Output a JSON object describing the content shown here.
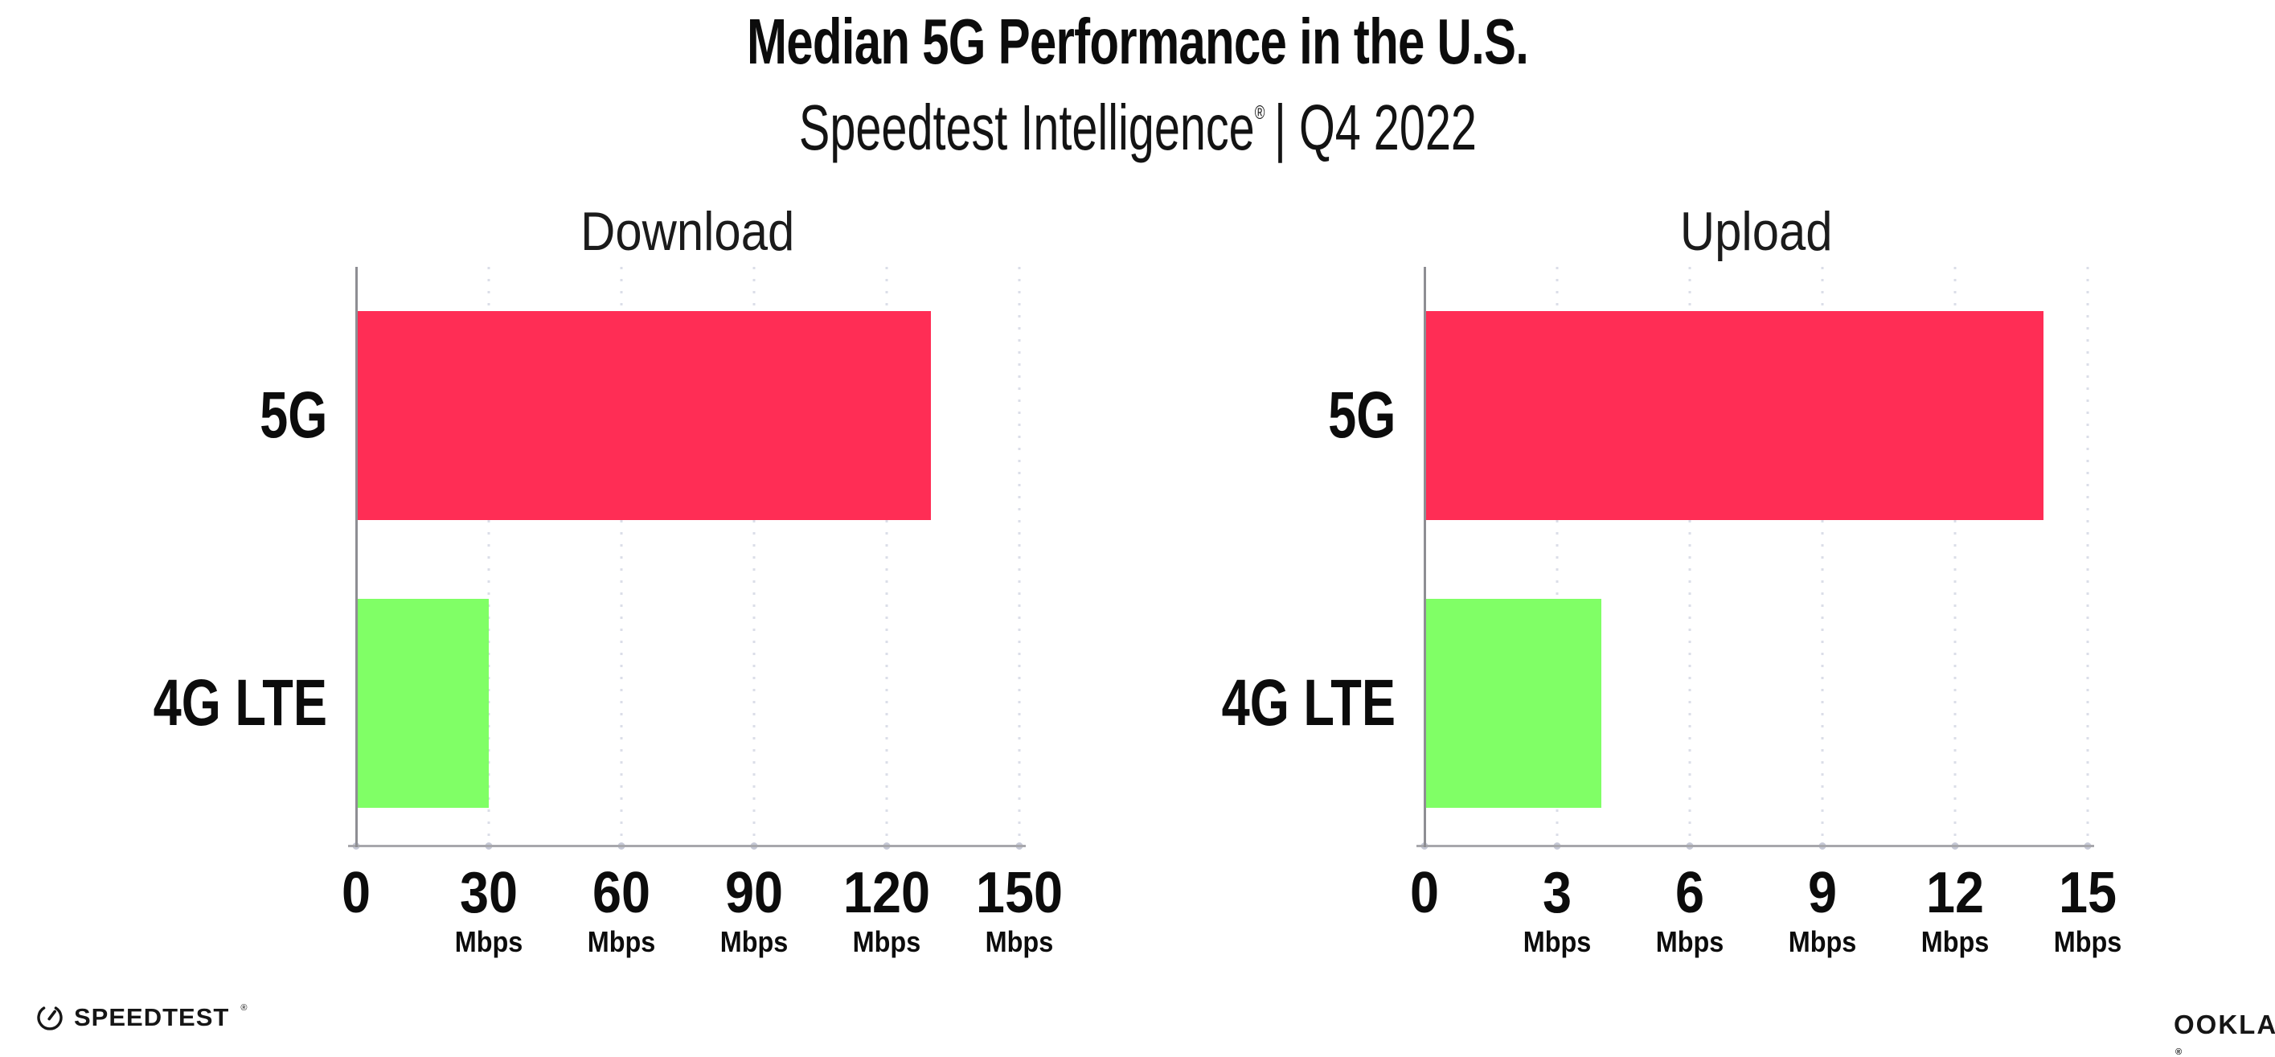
{
  "header": {
    "title": "Median 5G Performance in the U.S.",
    "subtitle_brand": "Speedtest Intelligence",
    "subtitle_reg": "®",
    "subtitle_rest": "| Q4 2022"
  },
  "footer": {
    "speedtest_label": "SPEEDTEST",
    "speedtest_reg": "®",
    "ookla_label": "OOKLA",
    "ookla_reg": "®"
  },
  "colors": {
    "bar_5g": "#FF2D55",
    "bar_4g_lte": "#80FF66",
    "x_axis_line": "#A7A7AC",
    "y_axis_line": "#8E8E93",
    "grid_dot": "#DBDEE8",
    "tick_dot": "#C6C9D6"
  },
  "chart_data": [
    {
      "type": "bar",
      "orientation": "horizontal",
      "title": "Download",
      "unit": "Mbps",
      "categories": [
        "5G",
        "4G LTE"
      ],
      "values": [
        130,
        30
      ],
      "bar_colors": [
        "#FF2D55",
        "#80FF66"
      ],
      "xlim": [
        0,
        150
      ],
      "xticks": [
        0,
        30,
        60,
        90,
        120,
        150
      ],
      "grid": "dotted-vertical",
      "legend": "none"
    },
    {
      "type": "bar",
      "orientation": "horizontal",
      "title": "Upload",
      "unit": "Mbps",
      "categories": [
        "5G",
        "4G LTE"
      ],
      "values": [
        14,
        4
      ],
      "bar_colors": [
        "#FF2D55",
        "#80FF66"
      ],
      "xlim": [
        0,
        15
      ],
      "xticks": [
        0,
        3,
        6,
        9,
        12,
        15
      ],
      "grid": "dotted-vertical",
      "legend": "none"
    }
  ]
}
